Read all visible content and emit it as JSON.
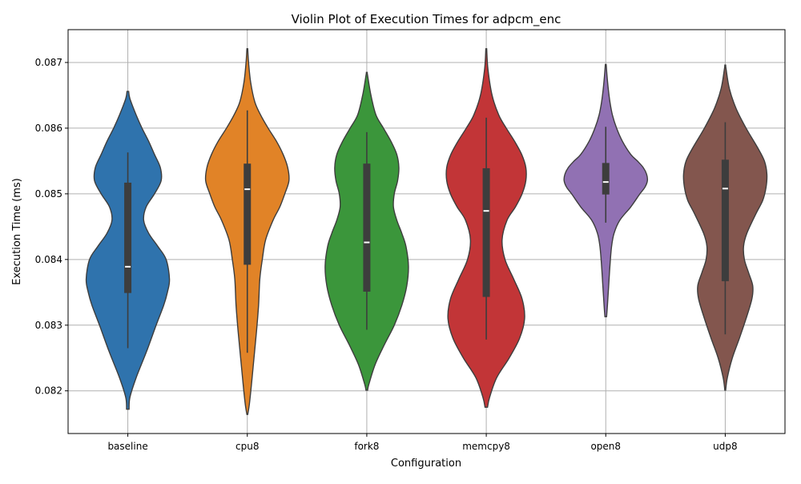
{
  "chart_data": {
    "type": "violin",
    "title": "Violin Plot of Execution Times for adpcm_enc",
    "xlabel": "Configuration",
    "ylabel": "Execution Time (ms)",
    "ylim": [
      0.08135,
      0.0875
    ],
    "yticks": [
      0.082,
      0.083,
      0.084,
      0.085,
      0.086,
      0.087
    ],
    "ytick_labels": [
      "0.082",
      "0.083",
      "0.084",
      "0.085",
      "0.086",
      "0.087"
    ],
    "grid": true,
    "categories": [
      "baseline",
      "cpu8",
      "fork8",
      "memcpy8",
      "open8",
      "udp8"
    ],
    "series": [
      {
        "category": "baseline",
        "color": "#2f73ad",
        "median": 0.08389,
        "q1": 0.08349,
        "q3": 0.08517,
        "whisker_low": 0.08265,
        "whisker_high": 0.08563,
        "kde_y": [
          0.08172,
          0.0819,
          0.0822,
          0.0826,
          0.083,
          0.0833,
          0.0835,
          0.0837,
          0.084,
          0.0842,
          0.0844,
          0.0846,
          0.0848,
          0.085,
          0.0852,
          0.0854,
          0.0856,
          0.0858,
          0.086,
          0.0862,
          0.08645,
          0.08656
        ],
        "kde_half_width": [
          0.03,
          0.05,
          0.2,
          0.45,
          0.68,
          0.86,
          0.95,
          1.0,
          0.92,
          0.72,
          0.5,
          0.38,
          0.44,
          0.64,
          0.8,
          0.78,
          0.64,
          0.5,
          0.34,
          0.2,
          0.05,
          0.02
        ]
      },
      {
        "category": "cpu8",
        "color": "#e18327",
        "median": 0.08507,
        "q1": 0.08392,
        "q3": 0.08546,
        "whisker_low": 0.08258,
        "whisker_high": 0.08627,
        "kde_y": [
          0.08164,
          0.0818,
          0.0821,
          0.0825,
          0.0829,
          0.0833,
          0.0837,
          0.084,
          0.0843,
          0.0846,
          0.0848,
          0.085,
          0.0852,
          0.0854,
          0.0856,
          0.0858,
          0.086,
          0.0862,
          0.0864,
          0.0867,
          0.087,
          0.08721
        ],
        "kde_half_width": [
          0.01,
          0.05,
          0.1,
          0.16,
          0.22,
          0.27,
          0.3,
          0.36,
          0.44,
          0.62,
          0.78,
          0.9,
          1.0,
          0.97,
          0.86,
          0.7,
          0.5,
          0.32,
          0.18,
          0.08,
          0.03,
          0.01
        ]
      },
      {
        "category": "fork8",
        "color": "#3b963b",
        "median": 0.08426,
        "q1": 0.08351,
        "q3": 0.08546,
        "whisker_low": 0.08293,
        "whisker_high": 0.08594,
        "kde_y": [
          0.08201,
          0.0821,
          0.0824,
          0.0827,
          0.083,
          0.0833,
          0.0836,
          0.0839,
          0.0842,
          0.0844,
          0.0846,
          0.0848,
          0.085,
          0.0852,
          0.0854,
          0.0856,
          0.0858,
          0.086,
          0.0862,
          0.0865,
          0.0868,
          0.08685
        ],
        "kde_half_width": [
          0.02,
          0.05,
          0.2,
          0.42,
          0.66,
          0.84,
          0.96,
          1.0,
          0.94,
          0.84,
          0.72,
          0.64,
          0.66,
          0.74,
          0.77,
          0.72,
          0.58,
          0.4,
          0.22,
          0.1,
          0.02,
          0.01
        ]
      },
      {
        "category": "memcpy8",
        "color": "#c23537",
        "median": 0.08474,
        "q1": 0.08343,
        "q3": 0.08539,
        "whisker_low": 0.08278,
        "whisker_high": 0.08616,
        "kde_y": [
          0.08175,
          0.0819,
          0.0822,
          0.0825,
          0.0828,
          0.0831,
          0.0834,
          0.0837,
          0.084,
          0.0843,
          0.0846,
          0.0848,
          0.085,
          0.0852,
          0.0854,
          0.0856,
          0.0858,
          0.086,
          0.0862,
          0.0865,
          0.0869,
          0.08721
        ],
        "kde_half_width": [
          0.03,
          0.08,
          0.25,
          0.55,
          0.8,
          0.92,
          0.86,
          0.66,
          0.45,
          0.38,
          0.5,
          0.7,
          0.86,
          0.95,
          0.95,
          0.85,
          0.68,
          0.48,
          0.3,
          0.14,
          0.04,
          0.01
        ]
      },
      {
        "category": "open8",
        "color": "#9171b3",
        "median": 0.08518,
        "q1": 0.08499,
        "q3": 0.08547,
        "whisker_low": 0.08456,
        "whisker_high": 0.08602,
        "kde_y": [
          0.08313,
          0.0833,
          0.0836,
          0.0839,
          0.0842,
          0.0844,
          0.0846,
          0.0848,
          0.085,
          0.0851,
          0.0852,
          0.0853,
          0.0854,
          0.0855,
          0.0856,
          0.0858,
          0.086,
          0.0862,
          0.0864,
          0.0866,
          0.0868,
          0.08697
        ],
        "kde_half_width": [
          0.02,
          0.04,
          0.07,
          0.1,
          0.14,
          0.2,
          0.34,
          0.6,
          0.82,
          0.94,
          1.0,
          0.98,
          0.9,
          0.76,
          0.6,
          0.4,
          0.26,
          0.16,
          0.1,
          0.06,
          0.03,
          0.01
        ]
      },
      {
        "category": "udp8",
        "color": "#83564e",
        "median": 0.08508,
        "q1": 0.08367,
        "q3": 0.08552,
        "whisker_low": 0.08286,
        "whisker_high": 0.08609,
        "kde_y": [
          0.08201,
          0.0822,
          0.0825,
          0.0828,
          0.0831,
          0.0834,
          0.0836,
          0.0838,
          0.084,
          0.0842,
          0.0844,
          0.0847,
          0.0849,
          0.0851,
          0.0853,
          0.0855,
          0.0857,
          0.086,
          0.0863,
          0.0866,
          0.0869,
          0.08696
        ],
        "kde_half_width": [
          0.01,
          0.05,
          0.17,
          0.34,
          0.5,
          0.64,
          0.66,
          0.56,
          0.46,
          0.44,
          0.52,
          0.74,
          0.9,
          0.98,
          1.0,
          0.94,
          0.78,
          0.5,
          0.26,
          0.1,
          0.02,
          0.01
        ]
      }
    ]
  }
}
